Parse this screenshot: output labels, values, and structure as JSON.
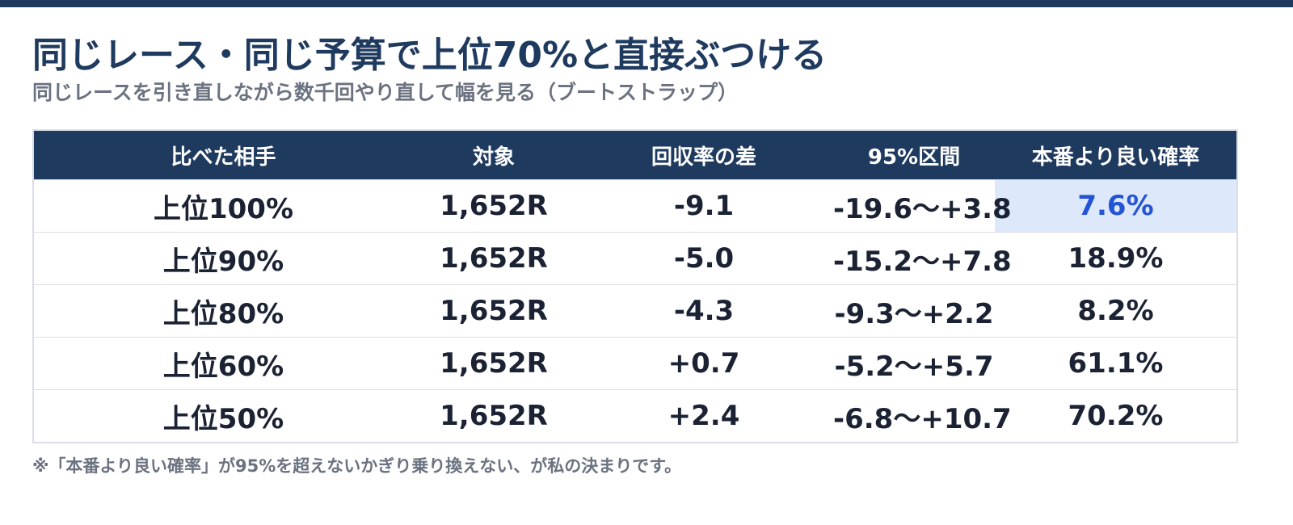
{
  "title": "同じレース・同じ予算で上位70%と直接ぶつける",
  "subtitle": "同じレースを引き直しながら数千回やり直して幅を見る（ブートストラップ）",
  "table": {
    "headers": {
      "opponent": "比べた相手",
      "target": "対象",
      "diff": "回収率の差",
      "ci": "95%区間",
      "prob": "本番より良い確率"
    },
    "rows": [
      {
        "opponent": "上位100%",
        "target": "1,652R",
        "diff": "-9.1",
        "ci": "-19.6〜+3.8",
        "prob": "7.6%",
        "highlight": true
      },
      {
        "opponent": "上位90%",
        "target": "1,652R",
        "diff": "-5.0",
        "ci": "-15.2〜+7.8",
        "prob": "18.9%",
        "highlight": false
      },
      {
        "opponent": "上位80%",
        "target": "1,652R",
        "diff": "-4.3",
        "ci": "-9.3〜+2.2",
        "prob": "8.2%",
        "highlight": false
      },
      {
        "opponent": "上位60%",
        "target": "1,652R",
        "diff": "+0.7",
        "ci": "-5.2〜+5.7",
        "prob": "61.1%",
        "highlight": false
      },
      {
        "opponent": "上位50%",
        "target": "1,652R",
        "diff": "+2.4",
        "ci": "-6.8〜+10.7",
        "prob": "70.2%",
        "highlight": false
      }
    ]
  },
  "footnote": "※「本番より良い確率」が95%を超えないかぎり乗り換えない、が私の決まりです。",
  "colors": {
    "accent": "#1f3a5f",
    "highlight_bg": "#dde9fb",
    "highlight_text": "#2454d6",
    "muted_text": "#6b7280"
  }
}
